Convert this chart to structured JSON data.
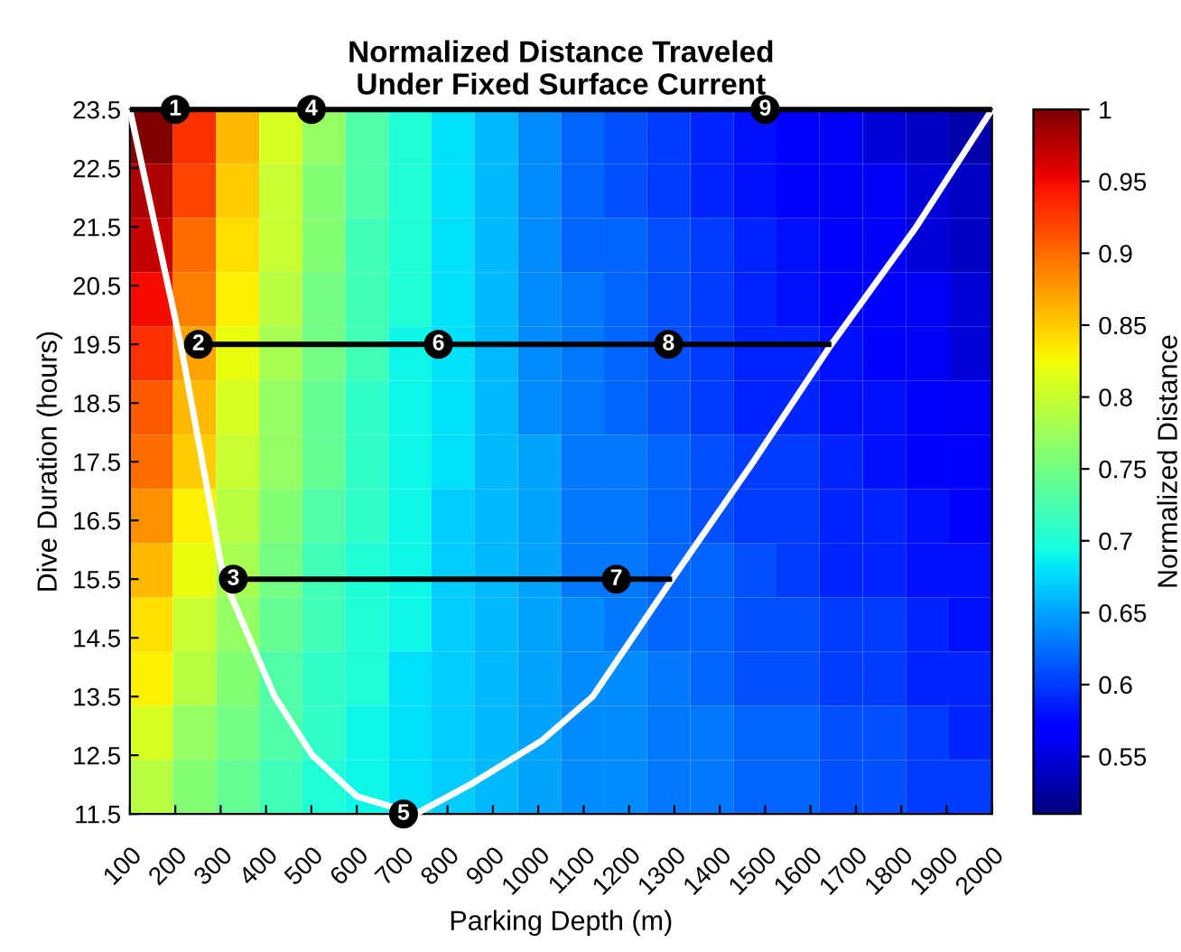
{
  "chart_data": {
    "type": "heatmap",
    "title": "Normalized Distance Traveled\nUnder Fixed Surface Current",
    "xlabel": "Parking Depth (m)",
    "ylabel": "Dive Duration (hours)",
    "clabel": "Normalized Distance",
    "xlim": [
      100,
      2000
    ],
    "ylim": [
      11.5,
      23.5
    ],
    "xticks": [
      100,
      200,
      300,
      400,
      500,
      600,
      700,
      800,
      900,
      1000,
      1100,
      1200,
      1300,
      1400,
      1500,
      1600,
      1700,
      1800,
      1900,
      2000
    ],
    "yticks": [
      11.5,
      12.5,
      13.5,
      14.5,
      15.5,
      16.5,
      17.5,
      18.5,
      19.5,
      20.5,
      21.5,
      22.5,
      23.5
    ],
    "clim": [
      0.51,
      1.0
    ],
    "cticks": [
      0.55,
      0.6,
      0.65,
      0.7,
      0.75,
      0.8,
      0.85,
      0.9,
      0.95,
      1
    ],
    "cells": [
      [
        1.0,
        0.93,
        0.86,
        0.81,
        0.77,
        0.73,
        0.7,
        0.68,
        0.66,
        0.64,
        0.62,
        0.61,
        0.6,
        0.59,
        0.58,
        0.57,
        0.56,
        0.55,
        0.54,
        0.53
      ],
      [
        0.98,
        0.92,
        0.85,
        0.8,
        0.76,
        0.73,
        0.7,
        0.68,
        0.66,
        0.64,
        0.62,
        0.61,
        0.6,
        0.59,
        0.58,
        0.57,
        0.56,
        0.56,
        0.55,
        0.54
      ],
      [
        0.97,
        0.9,
        0.84,
        0.8,
        0.76,
        0.72,
        0.7,
        0.68,
        0.66,
        0.64,
        0.62,
        0.62,
        0.61,
        0.6,
        0.59,
        0.58,
        0.57,
        0.56,
        0.55,
        0.54
      ],
      [
        0.95,
        0.89,
        0.83,
        0.79,
        0.75,
        0.72,
        0.7,
        0.68,
        0.66,
        0.64,
        0.63,
        0.62,
        0.61,
        0.6,
        0.59,
        0.58,
        0.57,
        0.57,
        0.56,
        0.55
      ],
      [
        0.93,
        0.87,
        0.82,
        0.78,
        0.75,
        0.72,
        0.69,
        0.68,
        0.66,
        0.64,
        0.63,
        0.62,
        0.61,
        0.6,
        0.59,
        0.59,
        0.58,
        0.57,
        0.56,
        0.55
      ],
      [
        0.91,
        0.86,
        0.81,
        0.77,
        0.74,
        0.71,
        0.69,
        0.68,
        0.66,
        0.64,
        0.63,
        0.62,
        0.61,
        0.6,
        0.59,
        0.59,
        0.58,
        0.58,
        0.57,
        0.56
      ],
      [
        0.9,
        0.85,
        0.8,
        0.77,
        0.74,
        0.71,
        0.69,
        0.68,
        0.66,
        0.65,
        0.63,
        0.63,
        0.62,
        0.61,
        0.6,
        0.6,
        0.59,
        0.58,
        0.57,
        0.57
      ],
      [
        0.88,
        0.83,
        0.79,
        0.76,
        0.73,
        0.71,
        0.69,
        0.67,
        0.66,
        0.65,
        0.63,
        0.63,
        0.62,
        0.61,
        0.6,
        0.6,
        0.59,
        0.59,
        0.58,
        0.57
      ],
      [
        0.86,
        0.82,
        0.78,
        0.75,
        0.72,
        0.7,
        0.69,
        0.67,
        0.66,
        0.65,
        0.63,
        0.63,
        0.62,
        0.62,
        0.61,
        0.6,
        0.59,
        0.59,
        0.58,
        0.58
      ],
      [
        0.84,
        0.8,
        0.77,
        0.74,
        0.72,
        0.7,
        0.69,
        0.67,
        0.66,
        0.65,
        0.64,
        0.63,
        0.62,
        0.62,
        0.61,
        0.61,
        0.6,
        0.6,
        0.59,
        0.58
      ],
      [
        0.83,
        0.79,
        0.76,
        0.73,
        0.71,
        0.7,
        0.68,
        0.67,
        0.66,
        0.65,
        0.64,
        0.64,
        0.63,
        0.62,
        0.61,
        0.61,
        0.6,
        0.6,
        0.59,
        0.59
      ],
      [
        0.81,
        0.77,
        0.75,
        0.73,
        0.71,
        0.69,
        0.68,
        0.67,
        0.66,
        0.65,
        0.64,
        0.64,
        0.63,
        0.63,
        0.62,
        0.62,
        0.61,
        0.61,
        0.6,
        0.59
      ],
      [
        0.79,
        0.76,
        0.74,
        0.72,
        0.7,
        0.69,
        0.68,
        0.67,
        0.66,
        0.65,
        0.64,
        0.64,
        0.63,
        0.63,
        0.62,
        0.62,
        0.61,
        0.61,
        0.6,
        0.6
      ]
    ],
    "series": [
      {
        "type": "line",
        "color": "#ffffff",
        "x": [
          100,
          212,
          307,
          419,
          502,
          600,
          730,
          850,
          1008,
          1120,
          1295,
          1474,
          1646,
          1833,
          2000
        ],
        "values": [
          23.5,
          19.5,
          15.5,
          13.5,
          12.5,
          11.8,
          11.5,
          12.0,
          12.75,
          13.5,
          15.5,
          17.5,
          19.5,
          21.5,
          23.5
        ]
      },
      {
        "type": "line",
        "color": "#000000",
        "x": [
          100,
          2000
        ],
        "values": [
          23.5,
          23.5
        ]
      },
      {
        "type": "line",
        "color": "#000000",
        "x": [
          251,
          1646
        ],
        "values": [
          19.5,
          19.5
        ]
      },
      {
        "type": "line",
        "color": "#000000",
        "x": [
          328,
          1295
        ],
        "values": [
          15.5,
          15.5
        ]
      }
    ],
    "annotations": [
      {
        "text": "1",
        "x": 200,
        "y": 23.5
      },
      {
        "text": "2",
        "x": 251,
        "y": 19.5
      },
      {
        "text": "3",
        "x": 328,
        "y": 15.5
      },
      {
        "text": "4",
        "x": 500,
        "y": 23.5
      },
      {
        "text": "5",
        "x": 703,
        "y": 11.5
      },
      {
        "text": "6",
        "x": 780,
        "y": 19.5
      },
      {
        "text": "7",
        "x": 1172,
        "y": 15.5
      },
      {
        "text": "8",
        "x": 1287,
        "y": 19.5
      },
      {
        "text": "9",
        "x": 1500,
        "y": 23.5
      }
    ],
    "grid": false,
    "legend": false
  }
}
